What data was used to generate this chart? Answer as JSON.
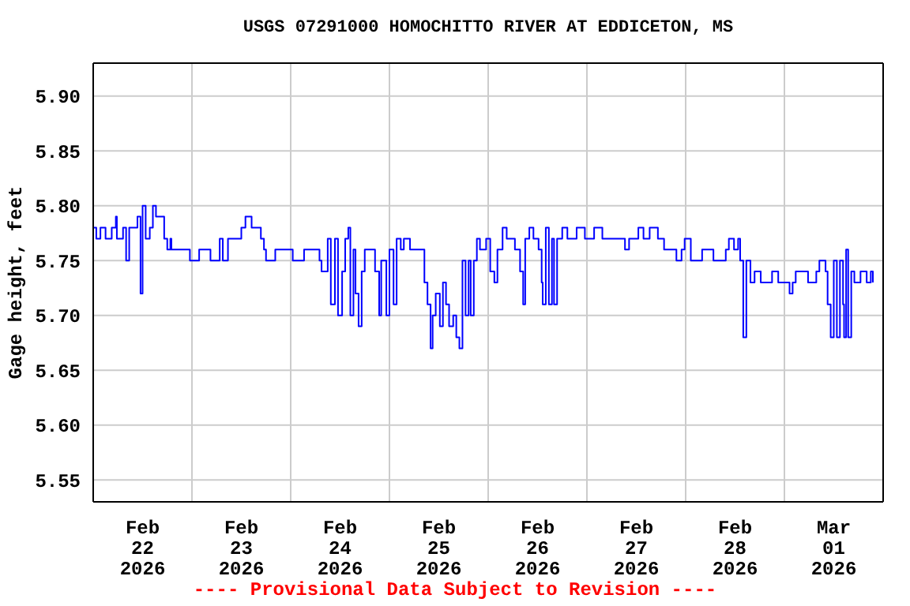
{
  "chart_data": {
    "type": "step",
    "title": "USGS 07291000 HOMOCHITTO RIVER AT EDDICETON, MS",
    "ylabel": "Gage height, feet",
    "annotations": [
      "---- Provisional Data Subject to Revision ----"
    ],
    "xlim": [
      "2026-02-22T00:00",
      "2026-03-02T00:00"
    ],
    "xticks": [
      {
        "value": "2026-02-22T12:00",
        "label": "Feb\n22\n2026"
      },
      {
        "value": "2026-02-23T00:00",
        "label": null
      },
      {
        "value": "2026-02-23T12:00",
        "label": "Feb\n23\n2026"
      },
      {
        "value": "2026-02-24T00:00",
        "label": null
      },
      {
        "value": "2026-02-24T12:00",
        "label": "Feb\n24\n2026"
      },
      {
        "value": "2026-02-25T00:00",
        "label": null
      },
      {
        "value": "2026-02-25T12:00",
        "label": "Feb\n25\n2026"
      },
      {
        "value": "2026-02-26T00:00",
        "label": null
      },
      {
        "value": "2026-02-26T12:00",
        "label": "Feb\n26\n2026"
      },
      {
        "value": "2026-02-27T00:00",
        "label": null
      },
      {
        "value": "2026-02-27T12:00",
        "label": "Feb\n27\n2026"
      },
      {
        "value": "2026-02-28T00:00",
        "label": null
      },
      {
        "value": "2026-02-28T12:00",
        "label": "Feb\n28\n2026"
      },
      {
        "value": "2026-03-01T00:00",
        "label": null
      },
      {
        "value": "2026-03-01T12:00",
        "label": "Mar\n01\n2026"
      }
    ],
    "ylim": [
      5.53,
      5.93
    ],
    "yticks": [
      {
        "value": 5.55,
        "label": "5.55"
      },
      {
        "value": 5.6,
        "label": "5.60"
      },
      {
        "value": 5.65,
        "label": "5.65"
      },
      {
        "value": 5.7,
        "label": "5.70"
      },
      {
        "value": 5.75,
        "label": "5.75"
      },
      {
        "value": 5.8,
        "label": "5.80"
      },
      {
        "value": 5.85,
        "label": "5.85"
      },
      {
        "value": 5.9,
        "label": "5.90"
      }
    ],
    "grid": true,
    "marker": "none",
    "line_style": "solid",
    "series": [
      {
        "color": "#0000ff",
        "x": [
          "2026-02-22T00:00",
          "2026-02-22T00:45",
          "2026-02-22T01:45",
          "2026-02-22T03:00",
          "2026-02-22T04:30",
          "2026-02-22T05:30",
          "2026-02-22T05:45",
          "2026-02-22T07:15",
          "2026-02-22T08:00",
          "2026-02-22T08:45",
          "2026-02-22T09:45",
          "2026-02-22T10:45",
          "2026-02-22T11:30",
          "2026-02-22T12:00",
          "2026-02-22T12:45",
          "2026-02-22T13:45",
          "2026-02-22T14:30",
          "2026-02-22T15:15",
          "2026-02-22T16:30",
          "2026-02-22T17:15",
          "2026-02-22T18:00",
          "2026-02-22T18:45",
          "2026-02-22T19:00",
          "2026-02-22T22:45",
          "2026-02-22T23:30",
          "2026-02-23T01:45",
          "2026-02-23T04:30",
          "2026-02-23T06:45",
          "2026-02-23T07:30",
          "2026-02-23T08:45",
          "2026-02-23T11:00",
          "2026-02-23T12:00",
          "2026-02-23T13:00",
          "2026-02-23T14:30",
          "2026-02-23T16:00",
          "2026-02-23T16:45",
          "2026-02-23T17:30",
          "2026-02-23T18:00",
          "2026-02-23T20:15",
          "2026-02-24T00:30",
          "2026-02-24T03:15",
          "2026-02-24T07:00",
          "2026-02-24T07:30",
          "2026-02-24T09:00",
          "2026-02-24T09:45",
          "2026-02-24T10:45",
          "2026-02-24T11:30",
          "2026-02-24T12:30",
          "2026-02-24T13:15",
          "2026-02-24T14:00",
          "2026-02-24T14:30",
          "2026-02-24T15:15",
          "2026-02-24T15:45",
          "2026-02-24T16:30",
          "2026-02-24T17:15",
          "2026-02-24T18:00",
          "2026-02-24T19:00",
          "2026-02-24T20:30",
          "2026-02-24T21:30",
          "2026-02-24T22:00",
          "2026-02-24T23:15",
          "2026-02-25T00:00",
          "2026-02-25T01:00",
          "2026-02-25T01:45",
          "2026-02-25T02:45",
          "2026-02-25T03:30",
          "2026-02-25T05:00",
          "2026-02-25T07:45",
          "2026-02-25T08:30",
          "2026-02-25T09:15",
          "2026-02-25T10:00",
          "2026-02-25T10:30",
          "2026-02-25T11:15",
          "2026-02-25T12:15",
          "2026-02-25T13:00",
          "2026-02-25T13:45",
          "2026-02-25T14:30",
          "2026-02-25T15:30",
          "2026-02-25T16:15",
          "2026-02-25T17:00",
          "2026-02-25T17:45",
          "2026-02-25T18:30",
          "2026-02-25T19:15",
          "2026-02-25T19:45",
          "2026-02-25T20:30",
          "2026-02-25T21:15",
          "2026-02-25T22:00",
          "2026-02-25T23:30",
          "2026-02-26T00:30",
          "2026-02-26T01:30",
          "2026-02-26T02:15",
          "2026-02-26T03:30",
          "2026-02-26T04:30",
          "2026-02-26T06:30",
          "2026-02-26T07:45",
          "2026-02-26T08:30",
          "2026-02-26T09:00",
          "2026-02-26T10:00",
          "2026-02-26T11:00",
          "2026-02-26T12:15",
          "2026-02-26T13:00",
          "2026-02-26T13:15",
          "2026-02-26T14:00",
          "2026-02-26T14:45",
          "2026-02-26T15:30",
          "2026-02-26T16:00",
          "2026-02-26T16:45",
          "2026-02-26T18:00",
          "2026-02-26T19:15",
          "2026-02-26T21:30",
          "2026-02-26T23:30",
          "2026-02-27T01:45",
          "2026-02-27T03:45",
          "2026-02-27T06:45",
          "2026-02-27T09:15",
          "2026-02-27T10:15",
          "2026-02-27T12:30",
          "2026-02-27T13:45",
          "2026-02-27T15:15",
          "2026-02-27T17:15",
          "2026-02-27T18:45",
          "2026-02-27T21:45",
          "2026-02-27T23:00",
          "2026-02-27T23:45",
          "2026-02-28T01:15",
          "2026-02-28T04:00",
          "2026-02-28T06:45",
          "2026-02-28T09:45",
          "2026-02-28T10:30",
          "2026-02-28T11:45",
          "2026-02-28T12:45",
          "2026-02-28T13:15",
          "2026-02-28T14:00",
          "2026-02-28T14:45",
          "2026-02-28T15:45",
          "2026-02-28T16:45",
          "2026-02-28T18:15",
          "2026-02-28T19:45",
          "2026-02-28T21:00",
          "2026-02-28T22:30",
          "2026-03-01T01:15",
          "2026-03-01T02:00",
          "2026-03-01T02:45",
          "2026-03-01T05:45",
          "2026-03-01T07:45",
          "2026-03-01T08:30",
          "2026-03-01T10:00",
          "2026-03-01T10:30",
          "2026-03-01T11:15",
          "2026-03-01T12:00",
          "2026-03-01T12:45",
          "2026-03-01T13:30",
          "2026-03-01T14:15",
          "2026-03-01T14:30",
          "2026-03-01T15:00",
          "2026-03-01T15:30",
          "2026-03-01T16:15",
          "2026-03-01T17:00",
          "2026-03-01T18:30",
          "2026-03-01T20:00",
          "2026-03-01T21:00",
          "2026-03-01T21:30"
        ],
        "values": [
          5.78,
          5.77,
          5.78,
          5.77,
          5.78,
          5.79,
          5.77,
          5.78,
          5.75,
          5.78,
          5.78,
          5.79,
          5.72,
          5.8,
          5.77,
          5.78,
          5.8,
          5.79,
          5.79,
          5.77,
          5.76,
          5.77,
          5.76,
          5.76,
          5.75,
          5.76,
          5.75,
          5.77,
          5.75,
          5.77,
          5.77,
          5.78,
          5.79,
          5.78,
          5.78,
          5.77,
          5.76,
          5.75,
          5.76,
          5.75,
          5.76,
          5.75,
          5.74,
          5.77,
          5.71,
          5.77,
          5.7,
          5.74,
          5.77,
          5.78,
          5.7,
          5.76,
          5.72,
          5.69,
          5.74,
          5.76,
          5.76,
          5.74,
          5.7,
          5.75,
          5.7,
          5.76,
          5.71,
          5.77,
          5.76,
          5.77,
          5.76,
          5.76,
          5.73,
          5.71,
          5.67,
          5.7,
          5.72,
          5.69,
          5.73,
          5.71,
          5.69,
          5.7,
          5.68,
          5.67,
          5.75,
          5.7,
          5.75,
          5.7,
          5.75,
          5.77,
          5.76,
          5.77,
          5.74,
          5.73,
          5.76,
          5.78,
          5.77,
          5.76,
          5.74,
          5.71,
          5.77,
          5.78,
          5.77,
          5.76,
          5.73,
          5.71,
          5.78,
          5.71,
          5.77,
          5.71,
          5.77,
          5.78,
          5.77,
          5.78,
          5.77,
          5.78,
          5.77,
          5.77,
          5.76,
          5.77,
          5.78,
          5.77,
          5.78,
          5.77,
          5.76,
          5.75,
          5.76,
          5.77,
          5.75,
          5.76,
          5.75,
          5.76,
          5.77,
          5.76,
          5.77,
          5.75,
          5.68,
          5.75,
          5.73,
          5.74,
          5.73,
          5.73,
          5.74,
          5.73,
          5.72,
          5.73,
          5.74,
          5.73,
          5.74,
          5.75,
          5.74,
          5.71,
          5.68,
          5.75,
          5.68,
          5.75,
          5.71,
          5.68,
          5.76,
          5.68,
          5.74,
          5.73,
          5.74,
          5.73,
          5.74,
          5.73
        ]
      }
    ]
  }
}
